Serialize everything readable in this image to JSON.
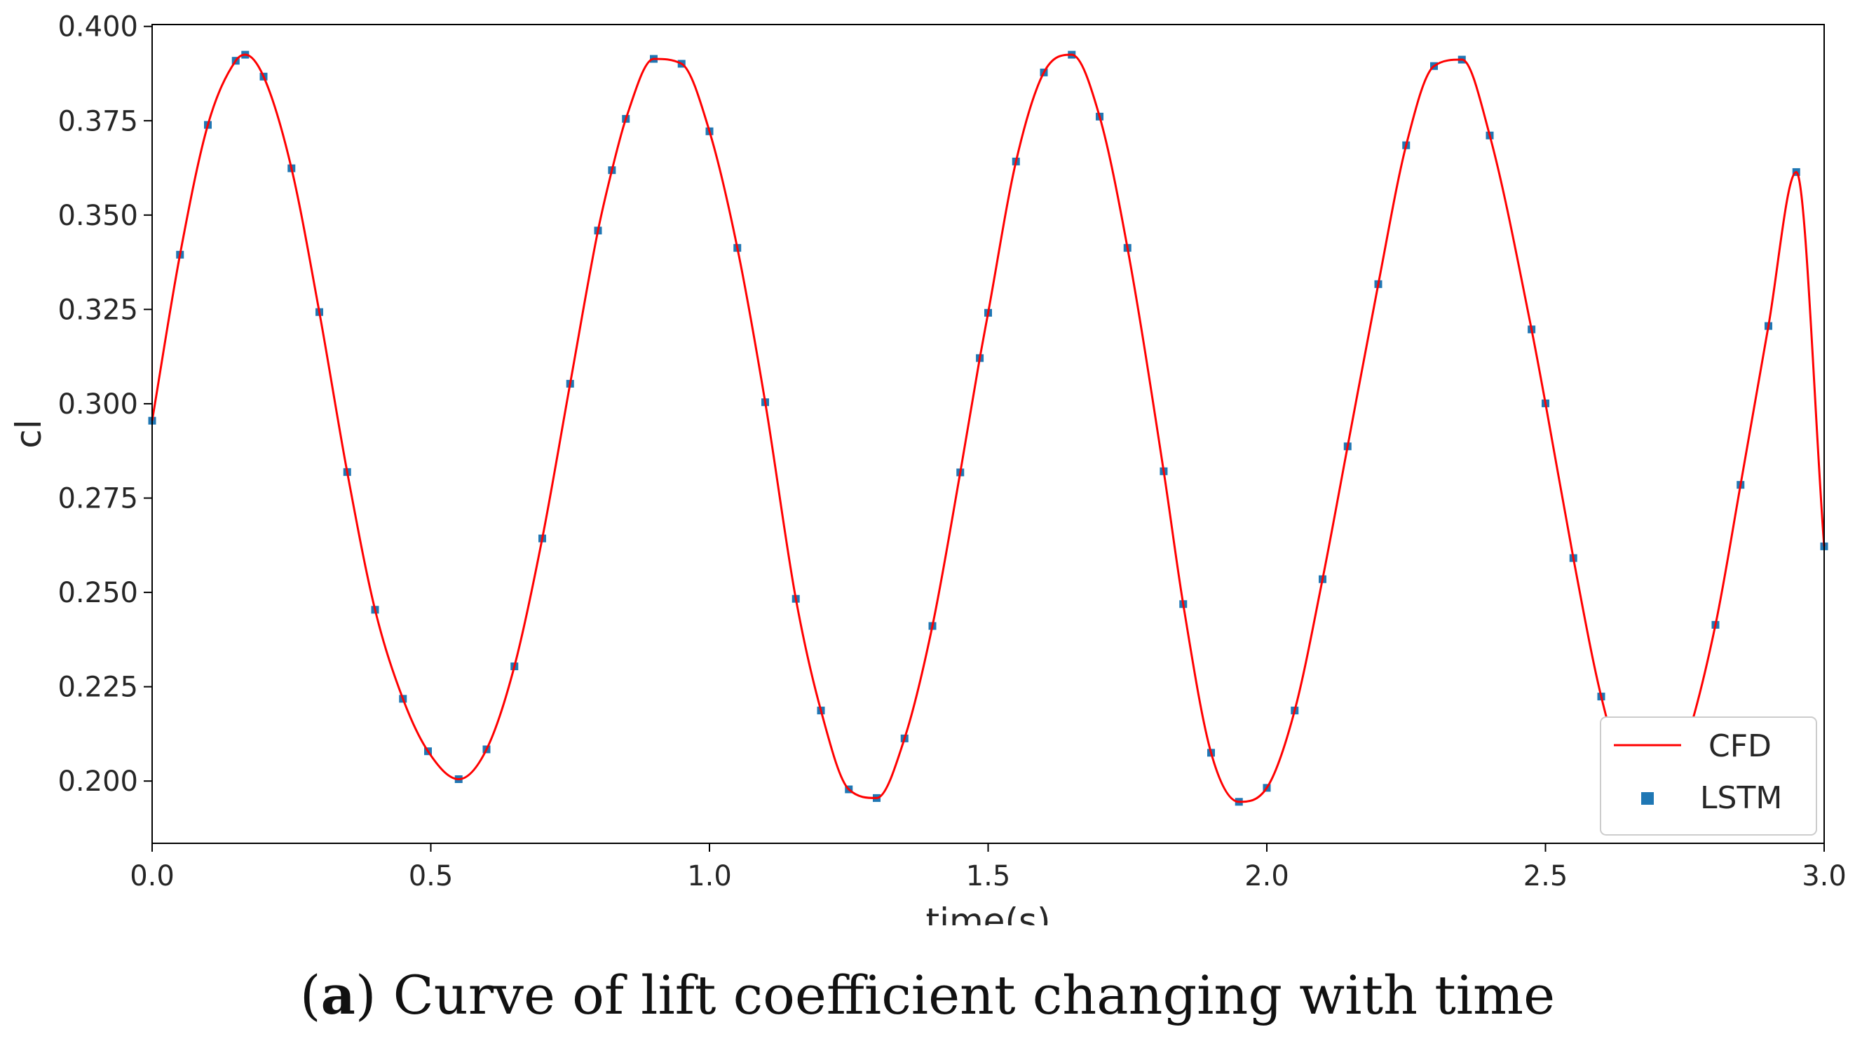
{
  "chart_data": {
    "type": "line",
    "xlabel": "time(s)",
    "ylabel": "cl",
    "xlim": [
      0.0,
      3.0
    ],
    "ylim": [
      0.1835,
      0.4005
    ],
    "xticks": [
      0.0,
      0.5,
      1.0,
      1.5,
      2.0,
      2.5,
      3.0
    ],
    "xtick_labels": [
      "0.0",
      "0.5",
      "1.0",
      "1.5",
      "2.0",
      "2.5",
      "3.0"
    ],
    "yticks": [
      0.2,
      0.225,
      0.25,
      0.275,
      0.3,
      0.325,
      0.35,
      0.375,
      0.4
    ],
    "ytick_labels": [
      "0.200",
      "0.225",
      "0.250",
      "0.275",
      "0.300",
      "0.325",
      "0.350",
      "0.375",
      "0.400"
    ],
    "grid": false,
    "legend_position": "bottom-right",
    "series": [
      {
        "name": "CFD",
        "style": "line",
        "color": "#ff0000",
        "x": [
          0.0,
          0.05,
          0.1,
          0.15,
          0.167,
          0.2,
          0.25,
          0.3,
          0.35,
          0.4,
          0.45,
          0.495,
          0.55,
          0.6,
          0.65,
          0.7,
          0.75,
          0.8,
          0.825,
          0.85,
          0.9,
          0.95,
          1.0,
          1.05,
          1.1,
          1.155,
          1.2,
          1.25,
          1.3,
          1.35,
          1.4,
          1.45,
          1.485,
          1.5,
          1.55,
          1.6,
          1.65,
          1.7,
          1.75,
          1.815,
          1.85,
          1.9,
          1.95,
          2.0,
          2.05,
          2.1,
          2.145,
          2.2,
          2.25,
          2.3,
          2.35,
          2.4,
          2.475,
          2.5,
          2.55,
          2.6,
          2.65,
          2.7,
          2.75,
          2.805,
          2.85,
          2.9,
          2.95,
          3.0
        ],
        "values": [
          0.2955,
          0.3395,
          0.3739,
          0.3909,
          0.3925,
          0.3867,
          0.3624,
          0.3243,
          0.2819,
          0.2454,
          0.2218,
          0.2079,
          0.2005,
          0.2084,
          0.2304,
          0.2643,
          0.3053,
          0.3459,
          0.3619,
          0.3755,
          0.3914,
          0.3901,
          0.3722,
          0.3413,
          0.3004,
          0.2483,
          0.2187,
          0.1978,
          0.1955,
          0.2113,
          0.2411,
          0.2818,
          0.3121,
          0.3241,
          0.3642,
          0.3878,
          0.3925,
          0.3761,
          0.3413,
          0.2821,
          0.2469,
          0.2075,
          0.1945,
          0.1982,
          0.2187,
          0.2535,
          0.2887,
          0.3317,
          0.3685,
          0.3895,
          0.3912,
          0.3711,
          0.3197,
          0.3001,
          0.2591,
          0.2224,
          0.1985,
          0.1938,
          0.2094,
          0.2414,
          0.2785,
          0.3206,
          0.3614,
          0.2622
        ]
      },
      {
        "name": "LSTM",
        "style": "markers",
        "marker": "square",
        "color": "#1f77b4",
        "x": [
          0.0,
          0.05,
          0.1,
          0.15,
          0.167,
          0.2,
          0.25,
          0.3,
          0.35,
          0.4,
          0.45,
          0.495,
          0.55,
          0.6,
          0.65,
          0.7,
          0.75,
          0.8,
          0.825,
          0.85,
          0.9,
          0.95,
          1.0,
          1.05,
          1.1,
          1.155,
          1.2,
          1.25,
          1.3,
          1.35,
          1.4,
          1.45,
          1.485,
          1.5,
          1.55,
          1.6,
          1.65,
          1.7,
          1.75,
          1.815,
          1.85,
          1.9,
          1.95,
          2.0,
          2.05,
          2.1,
          2.145,
          2.2,
          2.25,
          2.3,
          2.35,
          2.4,
          2.475,
          2.5,
          2.55,
          2.6,
          2.65,
          2.7,
          2.75,
          2.805,
          2.85,
          2.9,
          2.95,
          3.0
        ],
        "values": [
          0.2955,
          0.3395,
          0.3739,
          0.3909,
          0.3925,
          0.3867,
          0.3624,
          0.3243,
          0.2819,
          0.2454,
          0.2218,
          0.2079,
          0.2005,
          0.2084,
          0.2304,
          0.2643,
          0.3053,
          0.3459,
          0.3619,
          0.3755,
          0.3914,
          0.3901,
          0.3722,
          0.3413,
          0.3004,
          0.2483,
          0.2187,
          0.1978,
          0.1955,
          0.2113,
          0.2411,
          0.2818,
          0.3121,
          0.3241,
          0.3642,
          0.3878,
          0.3925,
          0.3761,
          0.3413,
          0.2821,
          0.2469,
          0.2075,
          0.1945,
          0.1982,
          0.2187,
          0.2535,
          0.2887,
          0.3317,
          0.3685,
          0.3895,
          0.3912,
          0.3711,
          0.3197,
          0.3001,
          0.2591,
          0.2224,
          0.1985,
          0.1938,
          0.2094,
          0.2414,
          0.2785,
          0.3206,
          0.3614,
          0.2622
        ]
      }
    ]
  },
  "caption": {
    "label": "a",
    "text": "Curve of lift coefficient changing with time"
  }
}
